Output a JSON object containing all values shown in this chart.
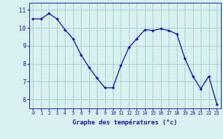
{
  "hours": [
    0,
    1,
    2,
    3,
    4,
    5,
    6,
    7,
    8,
    9,
    10,
    11,
    12,
    13,
    14,
    15,
    16,
    17,
    18,
    19,
    20,
    21,
    22,
    23
  ],
  "temperatures": [
    10.5,
    10.5,
    10.8,
    10.5,
    9.9,
    9.4,
    8.5,
    7.8,
    7.2,
    6.65,
    6.65,
    7.9,
    8.9,
    9.4,
    9.9,
    9.85,
    9.95,
    9.85,
    9.65,
    8.3,
    7.3,
    6.6,
    7.3,
    5.75
  ],
  "line_color": "#1a1aaa",
  "marker": "D",
  "marker_size": 2.0,
  "bg_color": "#d8f0f0",
  "grid_color": "#aacfcf",
  "xlabel": "Graphe des températures (°c)",
  "ylabel_ticks": [
    6,
    7,
    8,
    9,
    10,
    11
  ],
  "xlim": [
    -0.5,
    23.5
  ],
  "ylim": [
    5.5,
    11.4
  ],
  "tick_label_color": "#1a1aaa",
  "axis_label_color": "#1a1aaa",
  "linewidth": 1.0,
  "xlabel_fontsize": 6.5,
  "xtick_fontsize": 5.0,
  "ytick_fontsize": 6.0
}
